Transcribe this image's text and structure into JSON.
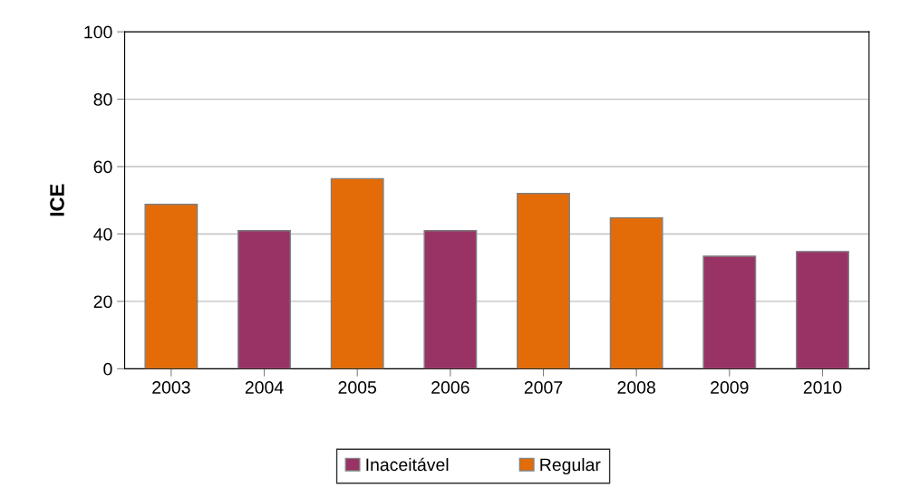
{
  "chart_data": {
    "type": "bar",
    "ylabel": "ICE",
    "categories": [
      "2003",
      "2004",
      "2005",
      "2006",
      "2007",
      "2008",
      "2009",
      "2010"
    ],
    "series": [
      {
        "name": "Inaceitável",
        "color": "#993366",
        "values": [
          null,
          41,
          null,
          41,
          null,
          null,
          33.4,
          34.8
        ]
      },
      {
        "name": "Regular",
        "color": "#e36c09",
        "values": [
          48.8,
          null,
          56.4,
          null,
          52,
          44.8,
          null,
          null
        ]
      }
    ],
    "ylim": [
      0,
      100
    ],
    "yticks": [
      0,
      20,
      40,
      60,
      80,
      100
    ],
    "grid": "y",
    "legend": "bottom"
  }
}
